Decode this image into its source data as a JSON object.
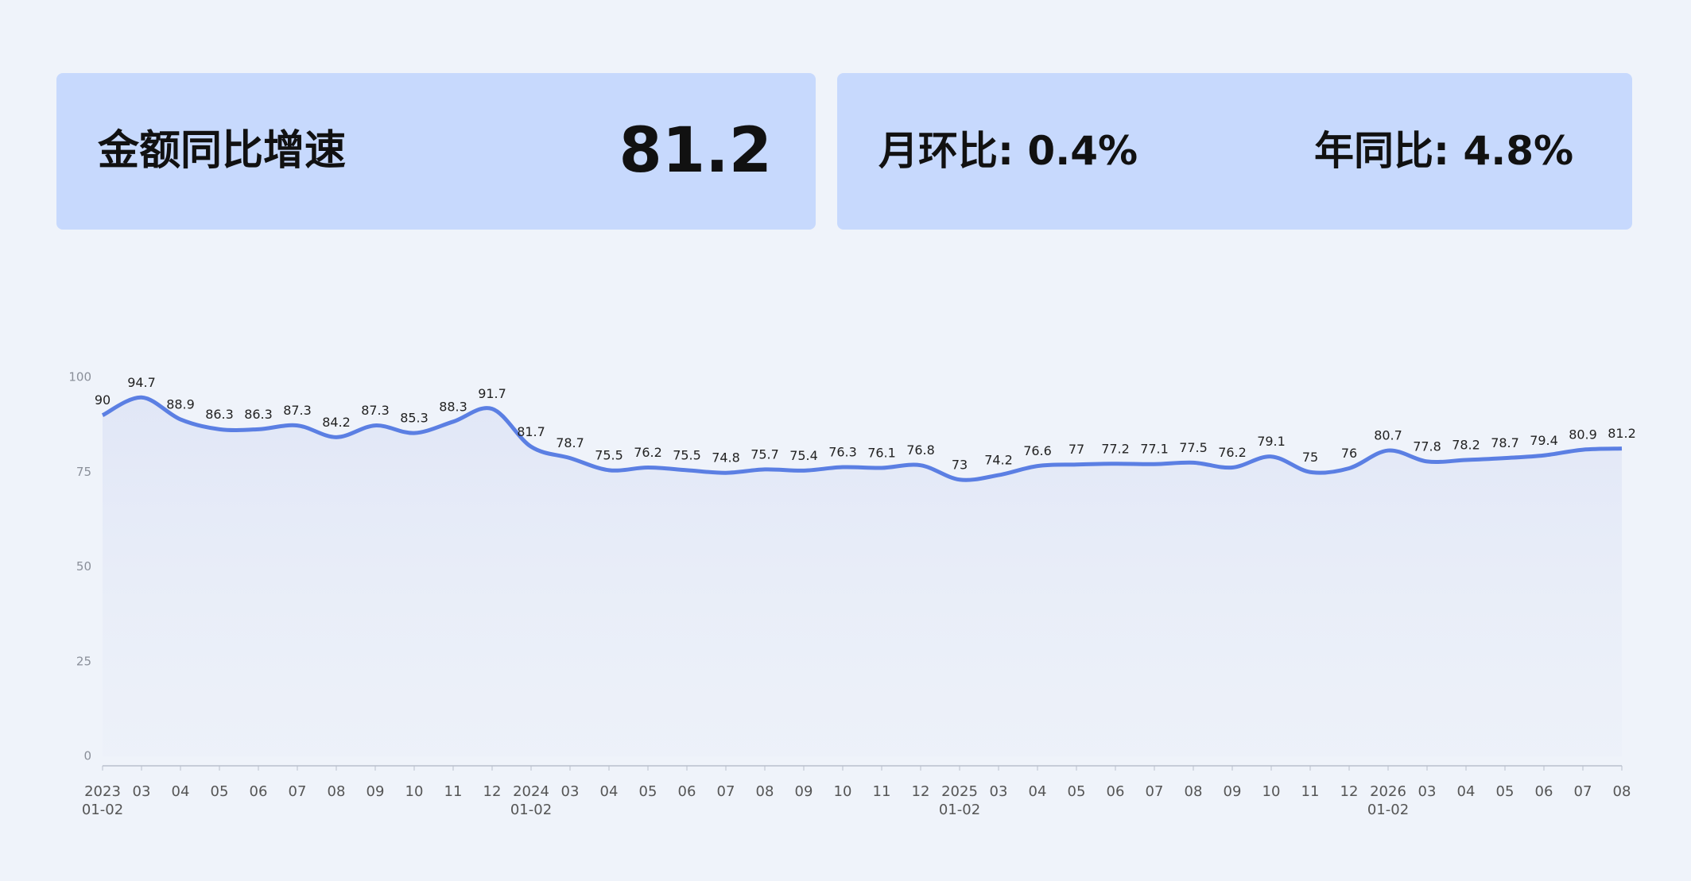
{
  "kpi": {
    "title": "金额同比增速",
    "value": "81.2",
    "mom_label": "月环比:",
    "mom_value": "0.4%",
    "yoy_label": "年同比:",
    "yoy_value": "4.8%"
  },
  "chart_data": {
    "type": "line",
    "categories": [
      [
        "2023",
        "01-02"
      ],
      "03",
      "04",
      "05",
      "06",
      "07",
      "08",
      "09",
      "10",
      "11",
      "12",
      [
        "2024",
        "01-02"
      ],
      "03",
      "04",
      "05",
      "06",
      "07",
      "08",
      "09",
      "10",
      "11",
      "12",
      [
        "2025",
        "01-02"
      ],
      "03",
      "04",
      "05",
      "06",
      "07",
      "08",
      "09",
      "10",
      "11",
      "12",
      [
        "2026",
        "01-02"
      ],
      "03",
      "04",
      "05",
      "06",
      "07",
      "08"
    ],
    "values": [
      90,
      94.7,
      88.9,
      86.3,
      86.3,
      87.3,
      84.2,
      87.3,
      85.3,
      88.3,
      91.7,
      81.7,
      78.7,
      75.5,
      76.2,
      75.5,
      74.8,
      75.7,
      75.4,
      76.3,
      76.1,
      76.8,
      73,
      74.2,
      76.6,
      77,
      77.2,
      77.1,
      77.5,
      76.2,
      79.1,
      75,
      76,
      80.7,
      77.8,
      78.2,
      78.7,
      79.4,
      80.9,
      81.2
    ],
    "color": "#5b7fe3",
    "ylim": [
      0,
      100
    ],
    "yticks": [
      0,
      25,
      50,
      75,
      100
    ],
    "grid": false
  }
}
